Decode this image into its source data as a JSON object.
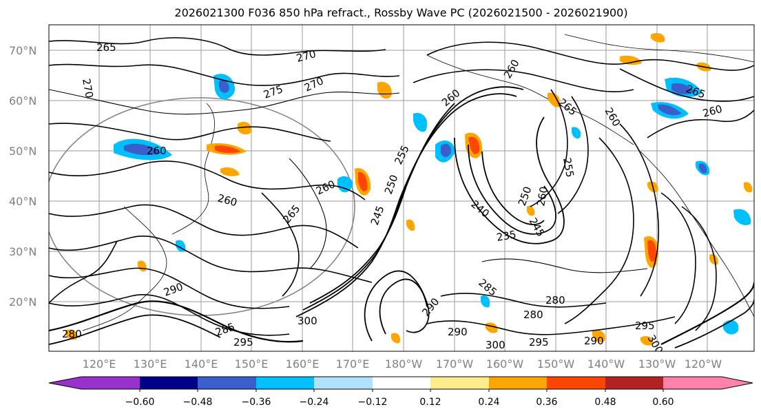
{
  "title": "2026021300 F036 850 hPa refract., Rossby Wave PC (2026021500 - 2026021900)",
  "map": {
    "lat_labels": [
      "70°N",
      "60°N",
      "50°N",
      "40°N",
      "30°N",
      "20°N"
    ],
    "lon_labels": [
      "120°E",
      "130°E",
      "140°E",
      "150°E",
      "160°E",
      "170°E",
      "180°W",
      "170°W",
      "160°W",
      "150°W",
      "140°W",
      "130°W",
      "120°W"
    ],
    "contour_labels": [
      {
        "text": "265"
      },
      {
        "text": "270"
      },
      {
        "text": "270"
      },
      {
        "text": "275"
      },
      {
        "text": "270"
      },
      {
        "text": "260"
      },
      {
        "text": "260"
      },
      {
        "text": "260"
      },
      {
        "text": "265"
      },
      {
        "text": "260"
      },
      {
        "text": "260"
      },
      {
        "text": "265"
      },
      {
        "text": "260"
      },
      {
        "text": "255"
      },
      {
        "text": "255"
      },
      {
        "text": "250"
      },
      {
        "text": "245"
      },
      {
        "text": "240"
      },
      {
        "text": "235"
      },
      {
        "text": "250"
      },
      {
        "text": "245"
      },
      {
        "text": "260"
      },
      {
        "text": "285"
      },
      {
        "text": "280"
      },
      {
        "text": "280"
      },
      {
        "text": "290"
      },
      {
        "text": "300"
      },
      {
        "text": "295"
      },
      {
        "text": "295"
      },
      {
        "text": "300"
      },
      {
        "text": "290"
      },
      {
        "text": "300"
      },
      {
        "text": "285"
      },
      {
        "text": "290"
      },
      {
        "text": "295"
      },
      {
        "text": "290"
      },
      {
        "text": "280"
      },
      {
        "text": "265"
      },
      {
        "text": "260"
      }
    ],
    "fill_colors": {
      "blue": "#00bfff",
      "mid_blue": "#3a5fcd",
      "light_blue": "#b0e2ff",
      "orange": "#ffa500",
      "red_orange": "#ff4500",
      "yellow": "#ffec8b"
    }
  },
  "colorbar": {
    "tick_labels": [
      "−0.60",
      "−0.48",
      "−0.36",
      "−0.24",
      "−0.12",
      "0.12",
      "0.24",
      "0.36",
      "0.48",
      "0.60"
    ],
    "colors": [
      "#9932cc",
      "#00008b",
      "#3a5fcd",
      "#00bfff",
      "#b0e2ff",
      "#ffffff",
      "#ffec8b",
      "#ffa500",
      "#ff4500",
      "#b22222",
      "#ff82ab"
    ]
  }
}
